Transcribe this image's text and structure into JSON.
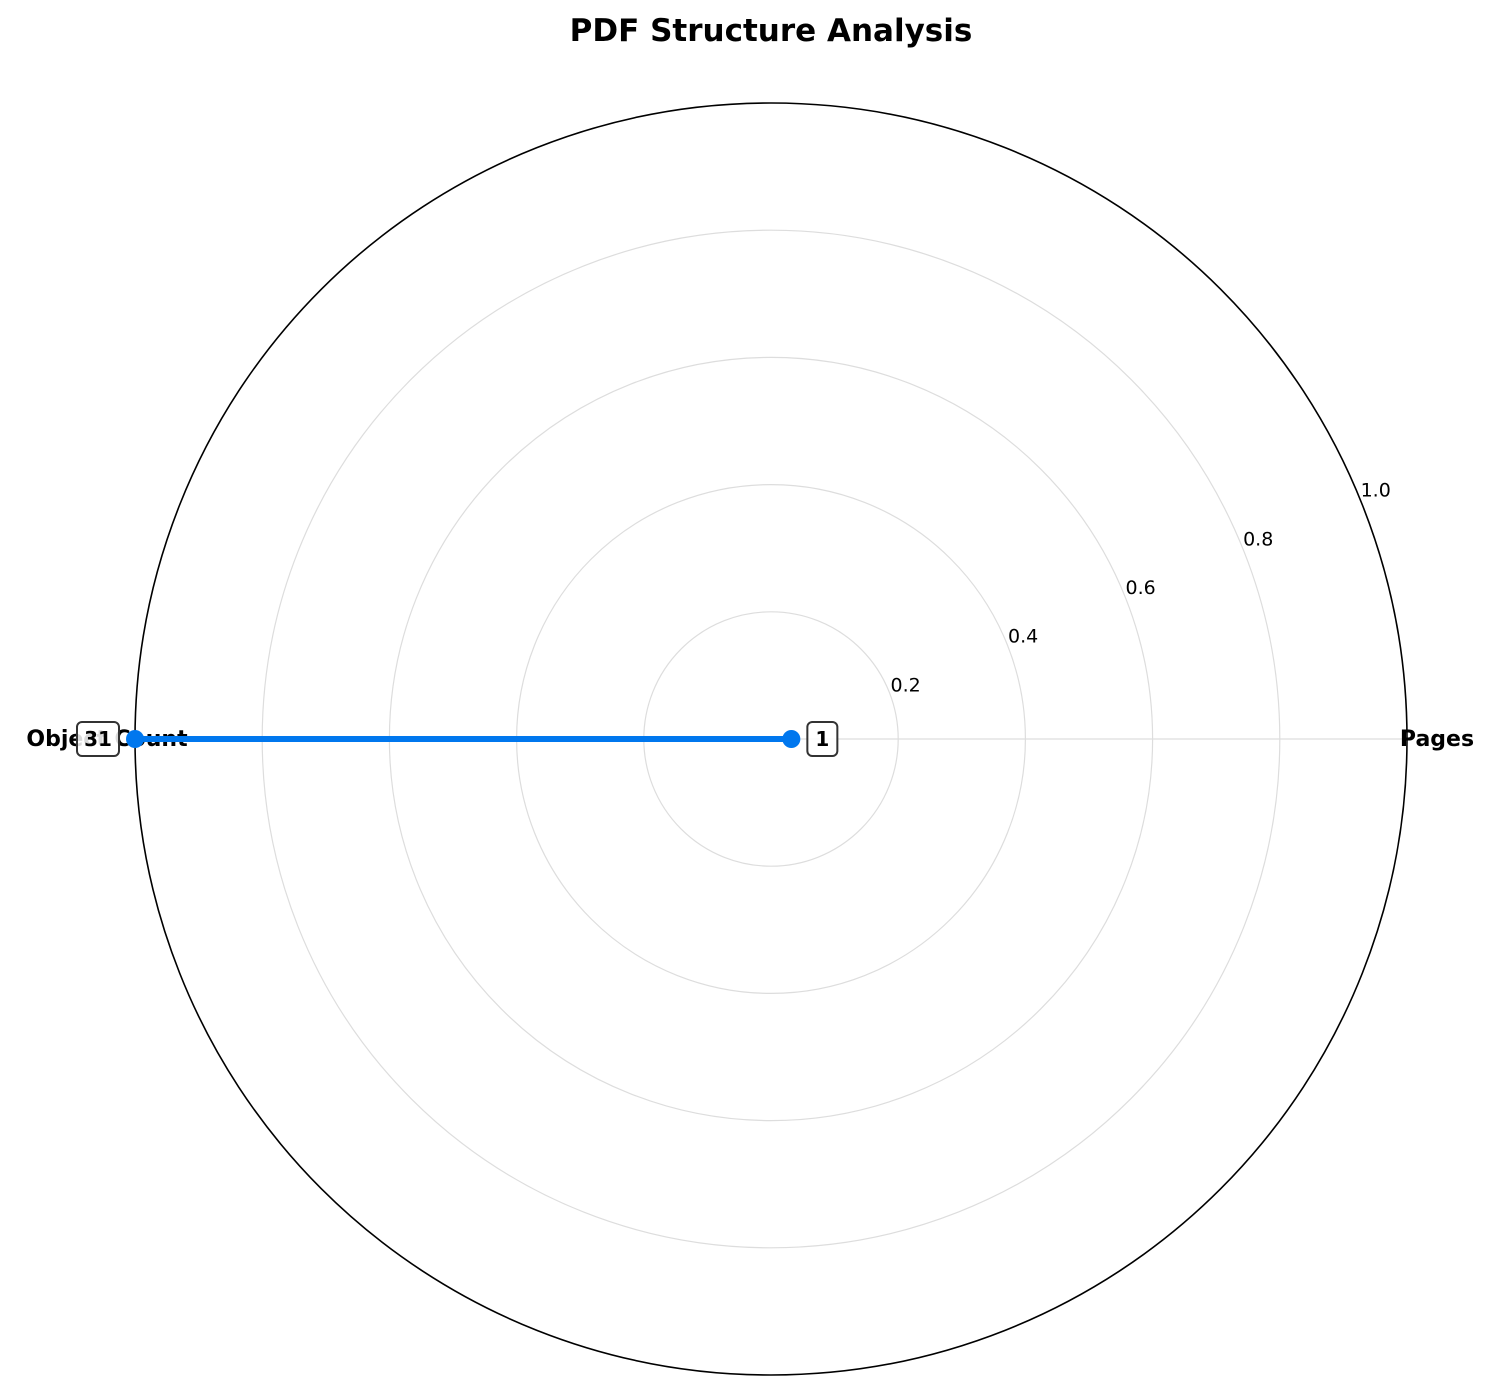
{
  "chart_data": {
    "type": "radar",
    "title": "PDF Structure Analysis",
    "categories": [
      "Pages",
      "Object Count"
    ],
    "series": [
      {
        "values": [
          1,
          31
        ],
        "normalized": [
          0.032,
          1.0
        ],
        "color": "#0077ee"
      }
    ],
    "value_labels": [
      "1",
      "31"
    ],
    "rlim": [
      0,
      1.0
    ],
    "r_ticks": [
      0.2,
      0.4,
      0.6,
      0.8,
      1.0
    ],
    "r_tick_labels": [
      "0.2",
      "0.4",
      "0.6",
      "0.8",
      "1.0"
    ],
    "grid": true,
    "grid_color": "#dddddd",
    "outer_circle_color": "#000000"
  }
}
